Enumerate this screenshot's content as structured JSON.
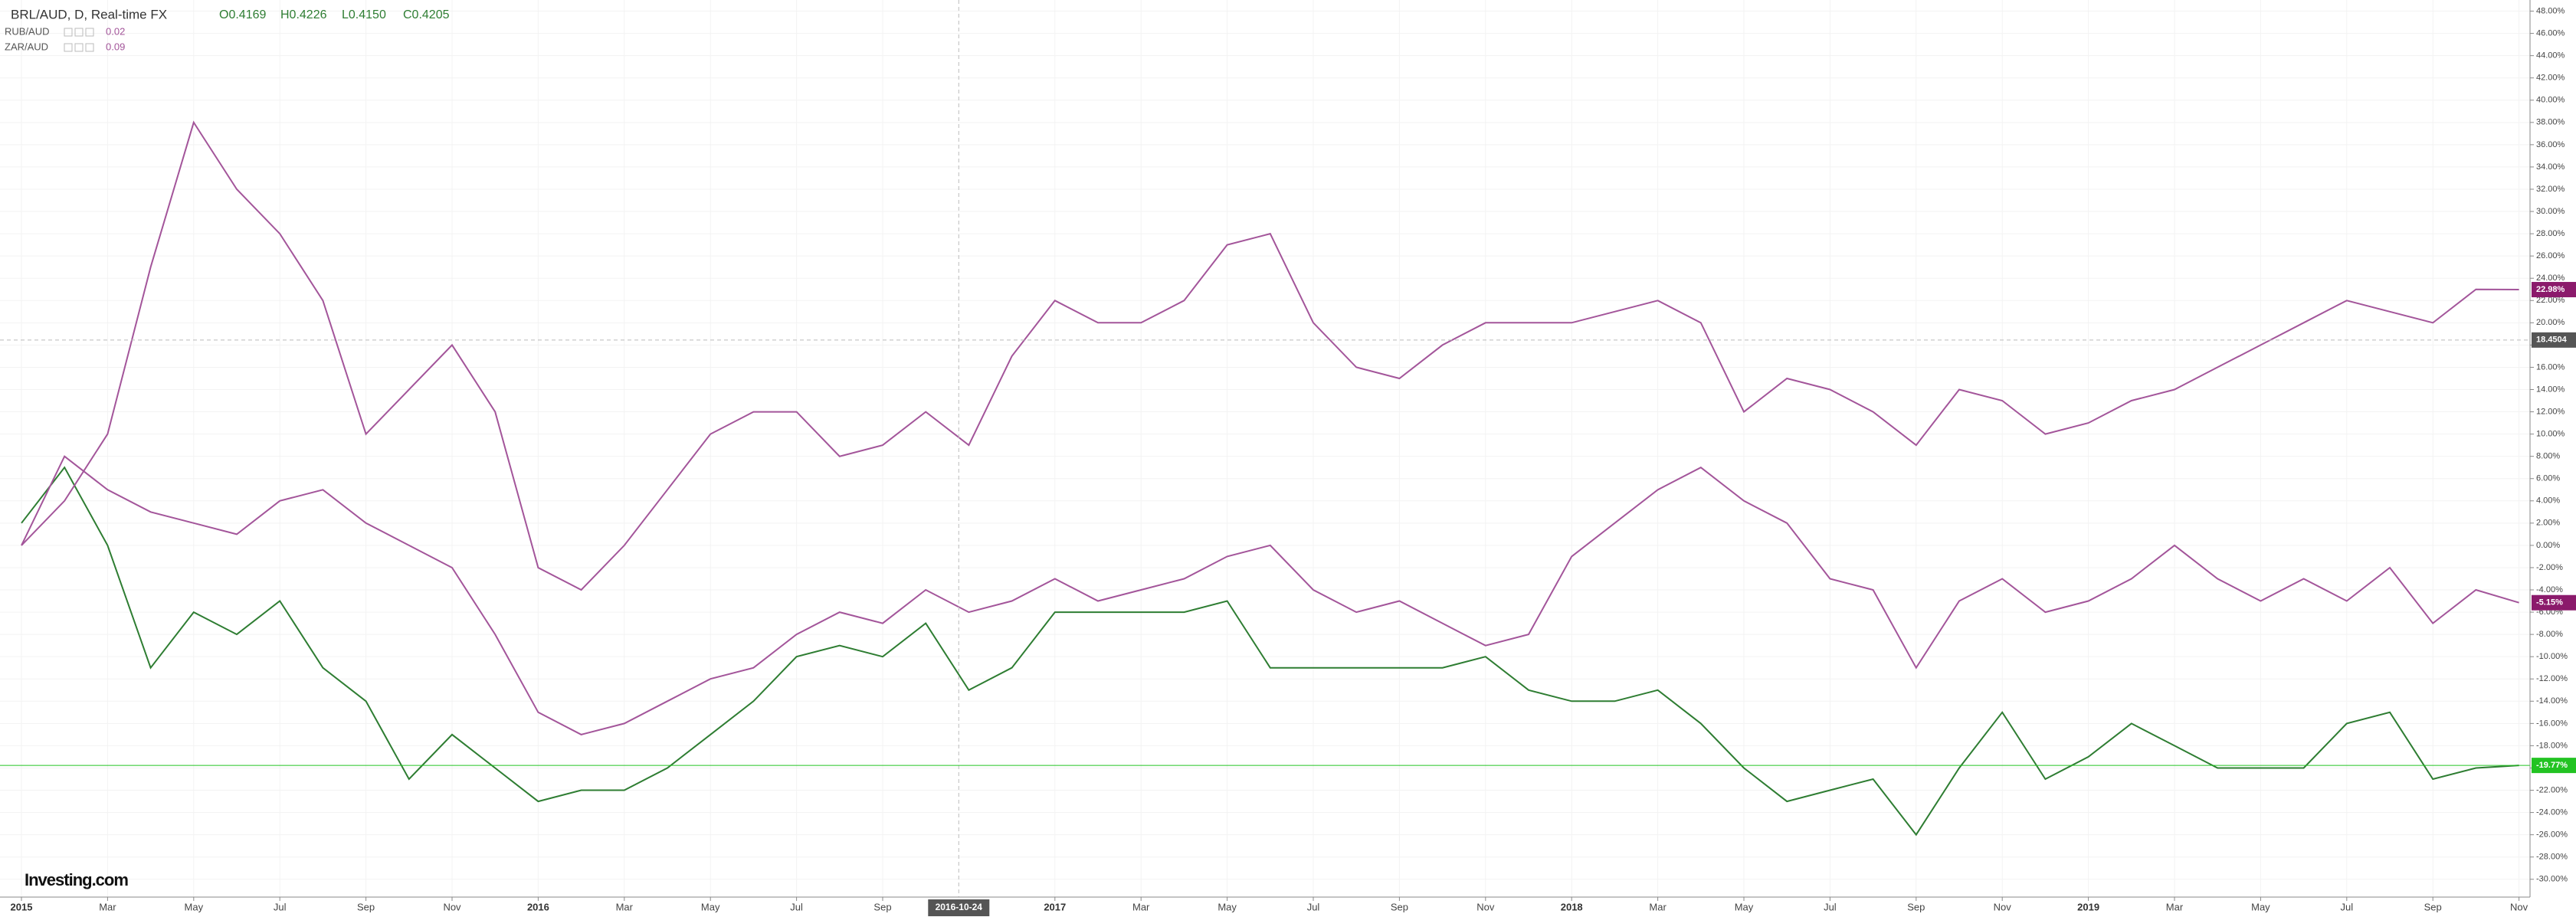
{
  "chart_data": {
    "type": "line",
    "title": "BRL/AUD, D, Real-time FX",
    "ohlc": [
      "O0.4169",
      "H0.4226",
      "L0.4150",
      "C0.4205"
    ],
    "logo": "Investing.com",
    "x": [
      "2015-01",
      "2015-02",
      "2015-03",
      "2015-04",
      "2015-05",
      "2015-06",
      "2015-07",
      "2015-08",
      "2015-09",
      "2015-10",
      "2015-11",
      "2015-12",
      "2016-01",
      "2016-02",
      "2016-03",
      "2016-04",
      "2016-05",
      "2016-06",
      "2016-07",
      "2016-08",
      "2016-09",
      "2016-10",
      "2016-11",
      "2016-12",
      "2017-01",
      "2017-02",
      "2017-03",
      "2017-04",
      "2017-05",
      "2017-06",
      "2017-07",
      "2017-08",
      "2017-09",
      "2017-10",
      "2017-11",
      "2017-12",
      "2018-01",
      "2018-02",
      "2018-03",
      "2018-04",
      "2018-05",
      "2018-06",
      "2018-07",
      "2018-08",
      "2018-09",
      "2018-10",
      "2018-11",
      "2018-12",
      "2019-01",
      "2019-02",
      "2019-03",
      "2019-04",
      "2019-05",
      "2019-06",
      "2019-07",
      "2019-08",
      "2019-09",
      "2019-10",
      "2019-11"
    ],
    "series": [
      {
        "color": "#2e7d32",
        "last_label": "-19.77%",
        "label_color": "#22c322",
        "values": [
          2,
          7,
          0,
          -11,
          -6,
          -8,
          -5,
          -11,
          -14,
          -21,
          -17,
          -20,
          -23,
          -22,
          -22,
          -20,
          -17,
          -14,
          -10,
          -9,
          -10,
          -7,
          -13,
          -11,
          -6,
          -6,
          -6,
          -6,
          -5,
          -11,
          -11,
          -11,
          -11,
          -11,
          -10,
          -13,
          -14,
          -14,
          -13,
          -16,
          -20,
          -23,
          -22,
          -21,
          -26,
          -20,
          -15,
          -21,
          -19,
          -16,
          -18,
          -20,
          -20,
          -20,
          -16,
          -15,
          -21,
          -20,
          -19.77
        ]
      },
      {
        "name": "RUB/AUD",
        "legend_value": "0.02",
        "color": "#a3559a",
        "last_label": "22.98%",
        "label_color": "#8b1a6b",
        "values": [
          0,
          4,
          10,
          25,
          38,
          32,
          28,
          22,
          10,
          14,
          18,
          12,
          -2,
          -4,
          0,
          5,
          10,
          12,
          12,
          8,
          9,
          12,
          9,
          17,
          22,
          20,
          20,
          22,
          27,
          28,
          20,
          16,
          15,
          18,
          20,
          20,
          20,
          21,
          22,
          20,
          12,
          15,
          14,
          12,
          9,
          14,
          13,
          10,
          11,
          13,
          14,
          16,
          18,
          20,
          22,
          21,
          20,
          23,
          22.98
        ]
      },
      {
        "name": "ZAR/AUD",
        "legend_value": "0.09",
        "color": "#a3559a",
        "last_label": "-5.15%",
        "label_color": "#8b1a6b",
        "values": [
          0,
          8,
          5,
          3,
          2,
          1,
          4,
          5,
          2,
          0,
          -2,
          -8,
          -15,
          -17,
          -16,
          -14,
          -12,
          -11,
          -8,
          -6,
          -7,
          -4,
          -6,
          -5,
          -3,
          -5,
          -4,
          -3,
          -1,
          0,
          -4,
          -6,
          -5,
          -7,
          -9,
          -8,
          -1,
          2,
          5,
          7,
          4,
          2,
          -3,
          -4,
          -11,
          -5,
          -3,
          -6,
          -5,
          -3,
          0,
          -3,
          -5,
          -3,
          -5,
          -2,
          -7,
          -4,
          -5.15
        ]
      }
    ],
    "crosshair": {
      "x": "2016-10-24",
      "y": 18.4504
    },
    "ylim": [
      -31.6,
      49
    ],
    "yticks": [
      {
        "value": -30,
        "label": "-30.00%"
      },
      {
        "value": -28,
        "label": "-28.00%"
      },
      {
        "value": -26,
        "label": "-26.00%"
      },
      {
        "value": -24,
        "label": "-24.00%"
      },
      {
        "value": -22,
        "label": "-22.00%"
      },
      {
        "value": -20,
        "label": "-20.00%"
      },
      {
        "value": -18,
        "label": "-18.00%"
      },
      {
        "value": -16,
        "label": "-16.00%"
      },
      {
        "value": -14,
        "label": "-14.00%"
      },
      {
        "value": -12,
        "label": "-12.00%"
      },
      {
        "value": -10,
        "label": "-10.00%"
      },
      {
        "value": -8,
        "label": "-8.00%"
      },
      {
        "value": -6,
        "label": "-6.00%"
      },
      {
        "value": -4,
        "label": "-4.00%"
      },
      {
        "value": -2,
        "label": "-2.00%"
      },
      {
        "value": 0,
        "label": "0.00%"
      },
      {
        "value": 2,
        "label": "2.00%"
      },
      {
        "value": 4,
        "label": "4.00%"
      },
      {
        "value": 6,
        "label": "6.00%"
      },
      {
        "value": 8,
        "label": "8.00%"
      },
      {
        "value": 10,
        "label": "10.00%"
      },
      {
        "value": 12,
        "label": "12.00%"
      },
      {
        "value": 14,
        "label": "14.00%"
      },
      {
        "value": 16,
        "label": "16.00%"
      },
      {
        "value": 18,
        "label": "18.00%"
      },
      {
        "value": 20,
        "label": "20.00%"
      },
      {
        "value": 22,
        "label": "22.00%"
      },
      {
        "value": 24,
        "label": "24.00%"
      },
      {
        "value": 26,
        "label": "26.00%"
      },
      {
        "value": 28,
        "label": "28.00%"
      },
      {
        "value": 30,
        "label": "30.00%"
      },
      {
        "value": 32,
        "label": "32.00%"
      },
      {
        "value": 34,
        "label": "34.00%"
      },
      {
        "value": 36,
        "label": "36.00%"
      },
      {
        "value": 38,
        "label": "38.00%"
      },
      {
        "value": 40,
        "label": "40.00%"
      },
      {
        "value": 42,
        "label": "42.00%"
      },
      {
        "value": 44,
        "label": "44.00%"
      },
      {
        "value": 46,
        "label": "46.00%"
      },
      {
        "value": 48,
        "label": "48.00%"
      }
    ],
    "xticks": [
      {
        "value": "2015-01",
        "label": "2015"
      },
      {
        "value": "2015-03",
        "label": "Mar"
      },
      {
        "value": "2015-05",
        "label": "May"
      },
      {
        "value": "2015-07",
        "label": "Jul"
      },
      {
        "value": "2015-09",
        "label": "Sep"
      },
      {
        "value": "2015-11",
        "label": "Nov"
      },
      {
        "value": "2016-01",
        "label": "2016"
      },
      {
        "value": "2016-03",
        "label": "Mar"
      },
      {
        "value": "2016-05",
        "label": "May"
      },
      {
        "value": "2016-07",
        "label": "Jul"
      },
      {
        "value": "2016-09",
        "label": "Sep"
      },
      {
        "value": "2017-01",
        "label": "2017"
      },
      {
        "value": "2017-03",
        "label": "Mar"
      },
      {
        "value": "2017-05",
        "label": "May"
      },
      {
        "value": "2017-07",
        "label": "Jul"
      },
      {
        "value": "2017-09",
        "label": "Sep"
      },
      {
        "value": "2017-11",
        "label": "Nov"
      },
      {
        "value": "2018-01",
        "label": "2018"
      },
      {
        "value": "2018-03",
        "label": "Mar"
      },
      {
        "value": "2018-05",
        "label": "May"
      },
      {
        "value": "2018-07",
        "label": "Jul"
      },
      {
        "value": "2018-09",
        "label": "Sep"
      },
      {
        "value": "2018-11",
        "label": "Nov"
      },
      {
        "value": "2019-01",
        "label": "2019"
      },
      {
        "value": "2019-03",
        "label": "Mar"
      },
      {
        "value": "2019-05",
        "label": "May"
      },
      {
        "value": "2019-07",
        "label": "Jul"
      },
      {
        "value": "2019-09",
        "label": "Sep"
      },
      {
        "value": "2019-11",
        "label": "Nov"
      }
    ],
    "grid": true
  }
}
